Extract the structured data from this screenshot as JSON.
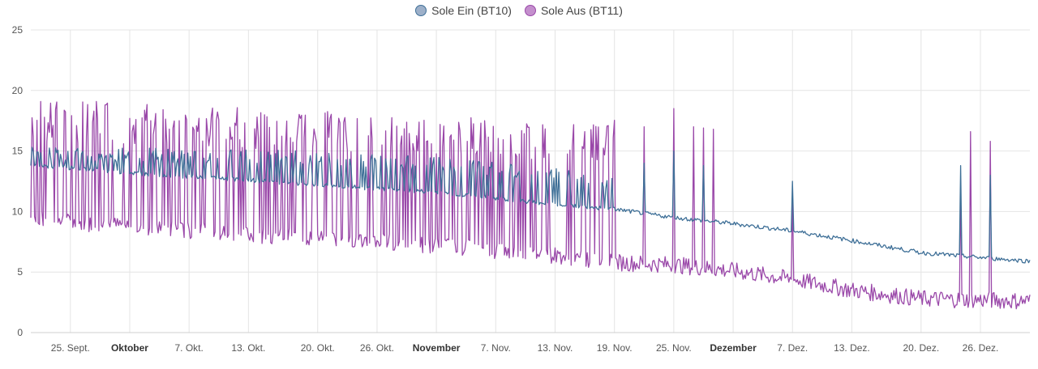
{
  "chart_data": {
    "type": "line",
    "title": "",
    "xlabel": "",
    "ylabel": "",
    "ylim": [
      0,
      25
    ],
    "yticks": [
      0,
      5,
      10,
      15,
      20,
      25
    ],
    "grid": true,
    "legend_position": "top-center",
    "x_range": [
      "2022-09-21",
      "2022-12-31"
    ],
    "x_ticks": [
      {
        "date": "2022-09-25",
        "label": "25. Sept.",
        "bold": false
      },
      {
        "date": "2022-10-01",
        "label": "Oktober",
        "bold": true
      },
      {
        "date": "2022-10-07",
        "label": "7. Okt.",
        "bold": false
      },
      {
        "date": "2022-10-13",
        "label": "13. Okt.",
        "bold": false
      },
      {
        "date": "2022-10-20",
        "label": "20. Okt.",
        "bold": false
      },
      {
        "date": "2022-10-26",
        "label": "26. Okt.",
        "bold": false
      },
      {
        "date": "2022-11-01",
        "label": "November",
        "bold": true
      },
      {
        "date": "2022-11-07",
        "label": "7. Nov.",
        "bold": false
      },
      {
        "date": "2022-11-13",
        "label": "13. Nov.",
        "bold": false
      },
      {
        "date": "2022-11-19",
        "label": "19. Nov.",
        "bold": false
      },
      {
        "date": "2022-11-25",
        "label": "25. Nov.",
        "bold": false
      },
      {
        "date": "2022-12-01",
        "label": "Dezember",
        "bold": true
      },
      {
        "date": "2022-12-07",
        "label": "7. Dez.",
        "bold": false
      },
      {
        "date": "2022-12-13",
        "label": "13. Dez.",
        "bold": false
      },
      {
        "date": "2022-12-20",
        "label": "20. Dez.",
        "bold": false
      },
      {
        "date": "2022-12-26",
        "label": "26. Dez.",
        "bold": false
      }
    ],
    "series": [
      {
        "name": "Sole Ein (BT10)",
        "color": "#3e6f97",
        "legend_fill": "#9db0c9",
        "points": [
          [
            "2022-09-21",
            13.8
          ],
          [
            "2022-09-25",
            13.6
          ],
          [
            "2022-10-01",
            13.2
          ],
          [
            "2022-10-07",
            12.9
          ],
          [
            "2022-10-13",
            12.6
          ],
          [
            "2022-10-20",
            12.2
          ],
          [
            "2022-10-26",
            11.9
          ],
          [
            "2022-11-01",
            11.6
          ],
          [
            "2022-11-07",
            11.1
          ],
          [
            "2022-11-13",
            10.6
          ],
          [
            "2022-11-19",
            10.2
          ],
          [
            "2022-11-25",
            9.5
          ],
          [
            "2022-12-01",
            9.0
          ],
          [
            "2022-12-07",
            8.4
          ],
          [
            "2022-12-13",
            7.6
          ],
          [
            "2022-12-20",
            6.6
          ],
          [
            "2022-12-26",
            6.2
          ],
          [
            "2022-12-31",
            5.9
          ]
        ],
        "cycling_band": [
          [
            "2022-09-21",
            15.4
          ],
          [
            "2022-10-20",
            15.0
          ],
          [
            "2022-11-01",
            14.5
          ],
          [
            "2022-11-13",
            13.6
          ],
          [
            "2022-11-19",
            12.8
          ]
        ],
        "spikes": [
          [
            "2022-11-22",
            14.0
          ],
          [
            "2022-11-25",
            15.0
          ],
          [
            "2022-11-28",
            13.8
          ],
          [
            "2022-12-07",
            12.5
          ],
          [
            "2022-12-24",
            13.8
          ],
          [
            "2022-12-27",
            13.0
          ]
        ]
      },
      {
        "name": "Sole Aus (BT11)",
        "color": "#9a48a9",
        "legend_fill": "#c48fcd",
        "points": [
          [
            "2022-09-21",
            9.5
          ],
          [
            "2022-09-25",
            9.1
          ],
          [
            "2022-10-01",
            8.8
          ],
          [
            "2022-10-07",
            8.4
          ],
          [
            "2022-10-13",
            8.1
          ],
          [
            "2022-10-20",
            7.8
          ],
          [
            "2022-10-26",
            7.6
          ],
          [
            "2022-11-01",
            7.2
          ],
          [
            "2022-11-07",
            6.8
          ],
          [
            "2022-11-13",
            6.4
          ],
          [
            "2022-11-19",
            5.8
          ],
          [
            "2022-11-25",
            5.6
          ],
          [
            "2022-12-01",
            5.1
          ],
          [
            "2022-12-07",
            4.4
          ],
          [
            "2022-12-13",
            3.5
          ],
          [
            "2022-12-20",
            2.8
          ],
          [
            "2022-12-26",
            2.7
          ],
          [
            "2022-12-31",
            2.6
          ]
        ],
        "cycling_band": [
          [
            "2022-09-21",
            19.3
          ],
          [
            "2022-10-07",
            18.8
          ],
          [
            "2022-10-20",
            18.5
          ],
          [
            "2022-11-01",
            18.0
          ],
          [
            "2022-11-13",
            17.5
          ],
          [
            "2022-11-19",
            17.8
          ]
        ],
        "spikes": [
          [
            "2022-11-22",
            17.0
          ],
          [
            "2022-11-25",
            18.5
          ],
          [
            "2022-11-27",
            17.0
          ],
          [
            "2022-11-28",
            16.9
          ],
          [
            "2022-11-29",
            16.8
          ],
          [
            "2022-12-07",
            11.5
          ],
          [
            "2022-12-24",
            12.0
          ],
          [
            "2022-12-25",
            16.6
          ],
          [
            "2022-12-27",
            15.8
          ]
        ]
      }
    ]
  }
}
